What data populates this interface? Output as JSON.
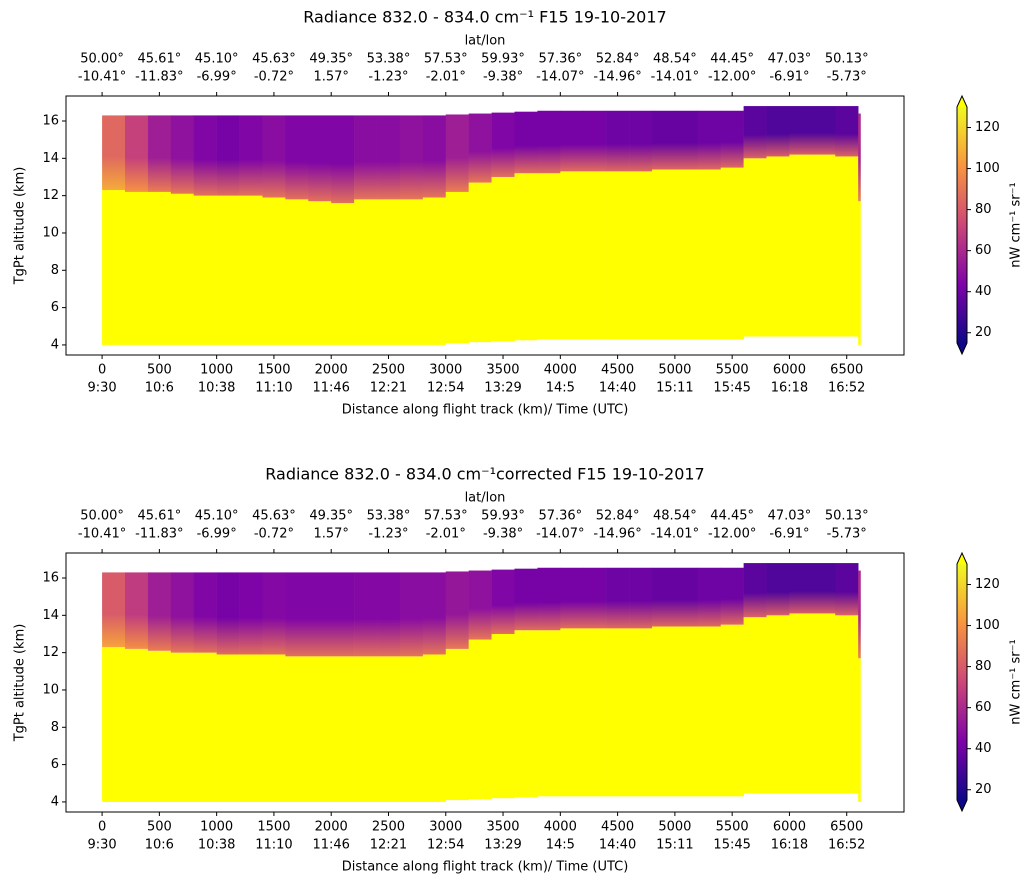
{
  "chart_data": [
    {
      "type": "heatmap",
      "title": "Radiance 832.0 - 834.0 cm⁻¹ F15  19-10-2017",
      "top_label": "lat/lon",
      "top_lat": [
        "50.00°",
        "45.61°",
        "45.10°",
        "45.63°",
        "49.35°",
        "53.38°",
        "57.53°",
        "59.93°",
        "57.36°",
        "52.84°",
        "48.54°",
        "44.45°",
        "47.03°",
        "50.13°"
      ],
      "top_lon": [
        "-10.41°",
        "-11.83°",
        "-6.99°",
        "-0.72°",
        "1.57°",
        "-1.23°",
        "-2.01°",
        "-9.38°",
        "-14.07°",
        "-14.96°",
        "-14.01°",
        "-12.00°",
        "-6.91°",
        "-5.73°"
      ],
      "xticks": [
        0,
        500,
        1000,
        1500,
        2000,
        2500,
        3000,
        3500,
        4000,
        4500,
        5000,
        5500,
        6000,
        6500
      ],
      "xtick_times": [
        "9:30",
        "10:6",
        "10:38",
        "11:10",
        "11:46",
        "12:21",
        "12:54",
        "13:29",
        "14:5",
        "14:40",
        "15:11",
        "15:45",
        "16:18",
        "16:52"
      ],
      "xlabel": "Distance along flight track (km)/ Time (UTC)",
      "ylabel": "TgPt altitude (km)",
      "xlim": [
        -315,
        7000
      ],
      "ylim": [
        3.46,
        17.34
      ],
      "yticks": [
        4,
        6,
        8,
        10,
        12,
        14,
        16
      ],
      "colorbar_label": "nW cm⁻¹ sr⁻¹",
      "clim": [
        15,
        130
      ],
      "cticks": [
        20,
        40,
        60,
        80,
        100,
        120
      ],
      "colormap": "plasma",
      "over_color": "#ffff00",
      "under_color": "#0d0887",
      "columns": {
        "x_edges": [
          0,
          200,
          400,
          600,
          800,
          1000,
          1200,
          1400,
          1600,
          1800,
          2000,
          2200,
          2400,
          2600,
          2800,
          3000,
          3200,
          3400,
          3600,
          3800,
          4000,
          4200,
          4400,
          4600,
          4800,
          5000,
          5200,
          5400,
          5600,
          5800,
          6000,
          6200,
          6400,
          6600,
          6620
        ],
        "bottom": [
          4.0,
          4.0,
          4.0,
          4.0,
          4.0,
          4.0,
          4.0,
          4.0,
          4.0,
          4.0,
          4.0,
          4.0,
          4.0,
          4.0,
          4.0,
          4.1,
          4.15,
          4.2,
          4.25,
          4.3,
          4.3,
          4.3,
          4.3,
          4.3,
          4.3,
          4.3,
          4.3,
          4.3,
          4.45,
          4.45,
          4.45,
          4.45,
          4.45,
          4.0
        ],
        "cloud_top": [
          12.3,
          12.2,
          12.2,
          12.1,
          12.0,
          12.0,
          12.0,
          11.9,
          11.8,
          11.7,
          11.6,
          11.8,
          11.8,
          11.8,
          11.9,
          12.2,
          12.7,
          13.0,
          13.2,
          13.2,
          13.3,
          13.3,
          13.3,
          13.3,
          13.4,
          13.4,
          13.4,
          13.5,
          14.0,
          14.1,
          14.2,
          14.2,
          14.1,
          11.7
        ],
        "top": [
          16.3,
          16.3,
          16.3,
          16.3,
          16.3,
          16.3,
          16.3,
          16.3,
          16.3,
          16.3,
          16.3,
          16.3,
          16.3,
          16.3,
          16.3,
          16.35,
          16.4,
          16.45,
          16.5,
          16.55,
          16.55,
          16.55,
          16.55,
          16.55,
          16.55,
          16.55,
          16.55,
          16.55,
          16.8,
          16.8,
          16.8,
          16.8,
          16.8,
          16.4
        ],
        "lower_radiance": [
          140,
          140,
          140,
          140,
          140,
          140,
          140,
          140,
          140,
          140,
          140,
          140,
          140,
          140,
          140,
          140,
          140,
          140,
          140,
          140,
          140,
          140,
          140,
          140,
          140,
          140,
          140,
          140,
          140,
          140,
          140,
          140,
          140,
          140
        ],
        "upper_radiance": [
          85,
          70,
          55,
          50,
          45,
          42,
          45,
          48,
          45,
          45,
          45,
          48,
          48,
          50,
          48,
          55,
          50,
          45,
          42,
          42,
          42,
          42,
          40,
          40,
          38,
          38,
          40,
          40,
          35,
          32,
          32,
          32,
          35,
          60
        ]
      }
    },
    {
      "type": "heatmap",
      "title": "Radiance 832.0 - 834.0 cm⁻¹corrected F15  19-10-2017",
      "top_label": "lat/lon",
      "top_lat": [
        "50.00°",
        "45.61°",
        "45.10°",
        "45.63°",
        "49.35°",
        "53.38°",
        "57.53°",
        "59.93°",
        "57.36°",
        "52.84°",
        "48.54°",
        "44.45°",
        "47.03°",
        "50.13°"
      ],
      "top_lon": [
        "-10.41°",
        "-11.83°",
        "-6.99°",
        "-0.72°",
        "1.57°",
        "-1.23°",
        "-2.01°",
        "-9.38°",
        "-14.07°",
        "-14.96°",
        "-14.01°",
        "-12.00°",
        "-6.91°",
        "-5.73°"
      ],
      "xticks": [
        0,
        500,
        1000,
        1500,
        2000,
        2500,
        3000,
        3500,
        4000,
        4500,
        5000,
        5500,
        6000,
        6500
      ],
      "xtick_times": [
        "9:30",
        "10:6",
        "10:38",
        "11:10",
        "11:46",
        "12:21",
        "12:54",
        "13:29",
        "14:5",
        "14:40",
        "15:11",
        "15:45",
        "16:18",
        "16:52"
      ],
      "xlabel": "Distance along flight track (km)/ Time (UTC)",
      "ylabel": "TgPt altitude (km)",
      "xlim": [
        -315,
        7000
      ],
      "ylim": [
        3.46,
        17.34
      ],
      "yticks": [
        4,
        6,
        8,
        10,
        12,
        14,
        16
      ],
      "colorbar_label": "nW cm⁻¹ sr⁻¹",
      "clim": [
        15,
        130
      ],
      "cticks": [
        20,
        40,
        60,
        80,
        100,
        120
      ],
      "colormap": "plasma",
      "over_color": "#ffff00",
      "under_color": "#0d0887",
      "columns": {
        "x_edges": [
          0,
          200,
          400,
          600,
          800,
          1000,
          1200,
          1400,
          1600,
          1800,
          2000,
          2200,
          2400,
          2600,
          2800,
          3000,
          3200,
          3400,
          3600,
          3800,
          4000,
          4200,
          4400,
          4600,
          4800,
          5000,
          5200,
          5400,
          5600,
          5800,
          6000,
          6200,
          6400,
          6600,
          6620
        ],
        "bottom": [
          4.0,
          4.0,
          4.0,
          4.0,
          4.0,
          4.0,
          4.0,
          4.0,
          4.0,
          4.0,
          4.0,
          4.0,
          4.0,
          4.0,
          4.0,
          4.1,
          4.15,
          4.2,
          4.25,
          4.3,
          4.3,
          4.3,
          4.3,
          4.3,
          4.3,
          4.3,
          4.3,
          4.3,
          4.45,
          4.45,
          4.45,
          4.45,
          4.45,
          4.0
        ],
        "cloud_top": [
          12.3,
          12.2,
          12.1,
          12.0,
          12.0,
          11.9,
          11.9,
          11.9,
          11.8,
          11.8,
          11.8,
          11.8,
          11.8,
          11.8,
          11.9,
          12.2,
          12.7,
          13.0,
          13.2,
          13.2,
          13.3,
          13.3,
          13.3,
          13.3,
          13.4,
          13.4,
          13.4,
          13.5,
          13.9,
          14.0,
          14.1,
          14.1,
          14.0,
          11.7
        ],
        "top": [
          16.3,
          16.3,
          16.3,
          16.3,
          16.3,
          16.3,
          16.3,
          16.3,
          16.3,
          16.3,
          16.3,
          16.3,
          16.3,
          16.3,
          16.3,
          16.35,
          16.4,
          16.45,
          16.5,
          16.55,
          16.55,
          16.55,
          16.55,
          16.55,
          16.55,
          16.55,
          16.55,
          16.55,
          16.8,
          16.8,
          16.8,
          16.8,
          16.8,
          16.4
        ],
        "lower_radiance": [
          140,
          140,
          140,
          140,
          140,
          140,
          140,
          140,
          140,
          140,
          140,
          140,
          140,
          140,
          140,
          140,
          140,
          140,
          140,
          140,
          140,
          140,
          140,
          140,
          140,
          140,
          140,
          140,
          140,
          140,
          140,
          140,
          140,
          140
        ],
        "upper_radiance": [
          80,
          68,
          55,
          50,
          45,
          42,
          44,
          46,
          45,
          45,
          45,
          46,
          46,
          48,
          48,
          52,
          50,
          45,
          42,
          42,
          42,
          42,
          40,
          40,
          38,
          38,
          40,
          40,
          35,
          32,
          32,
          32,
          35,
          60
        ]
      }
    }
  ]
}
